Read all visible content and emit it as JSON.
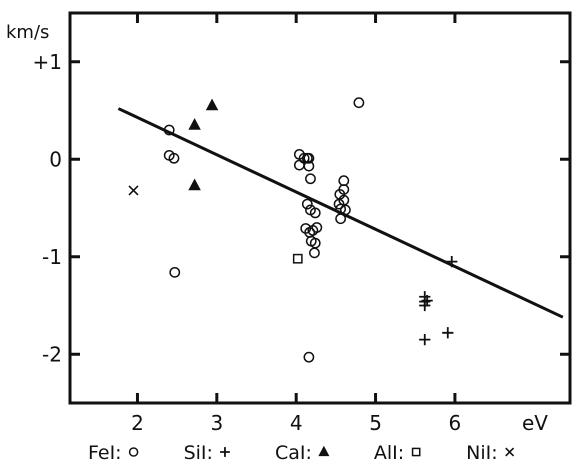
{
  "chart_data": {
    "type": "scatter",
    "title": "",
    "xlabel": "eV",
    "ylabel": "km/s",
    "xlim": [
      1.15,
      7.45
    ],
    "ylim": [
      -2.5,
      1.5
    ],
    "x_ticks": [
      2,
      3,
      4,
      5,
      6
    ],
    "x_tick_labels": [
      "2",
      "3",
      "4",
      "5",
      "6"
    ],
    "y_ticks": [
      1,
      0,
      -1,
      -2
    ],
    "y_tick_labels": [
      "+1",
      "0",
      "-1",
      "-2"
    ],
    "grid": false,
    "legend_position": "bottom",
    "series": [
      {
        "name": "FeI",
        "marker": "circle",
        "points": [
          [
            2.4,
            0.3
          ],
          [
            2.4,
            0.04
          ],
          [
            2.46,
            0.01
          ],
          [
            2.47,
            -1.16
          ],
          [
            4.04,
            0.05
          ],
          [
            4.04,
            -0.06
          ],
          [
            4.1,
            0.01
          ],
          [
            4.14,
            0.01
          ],
          [
            4.16,
            0.01
          ],
          [
            4.16,
            -0.07
          ],
          [
            4.18,
            -0.2
          ],
          [
            4.14,
            -0.46
          ],
          [
            4.18,
            -0.52
          ],
          [
            4.24,
            -0.55
          ],
          [
            4.12,
            -0.71
          ],
          [
            4.17,
            -0.75
          ],
          [
            4.21,
            -0.73
          ],
          [
            4.26,
            -0.7
          ],
          [
            4.19,
            -0.84
          ],
          [
            4.24,
            -0.86
          ],
          [
            4.23,
            -0.96
          ],
          [
            4.16,
            -2.03
          ],
          [
            4.55,
            -0.36
          ],
          [
            4.6,
            -0.22
          ],
          [
            4.6,
            -0.31
          ],
          [
            4.54,
            -0.46
          ],
          [
            4.6,
            -0.42
          ],
          [
            4.56,
            -0.51
          ],
          [
            4.62,
            -0.52
          ],
          [
            4.56,
            -0.61
          ],
          [
            4.79,
            0.58
          ]
        ]
      },
      {
        "name": "SiI",
        "marker": "plus",
        "points": [
          [
            5.62,
            -1.41
          ],
          [
            5.62,
            -1.46
          ],
          [
            5.62,
            -1.5
          ],
          [
            5.65,
            -1.45
          ],
          [
            5.62,
            -1.85
          ],
          [
            5.91,
            -1.78
          ],
          [
            5.96,
            -1.05
          ]
        ]
      },
      {
        "name": "CaI",
        "marker": "triangle",
        "points": [
          [
            2.72,
            0.35
          ],
          [
            2.72,
            -0.27
          ],
          [
            2.94,
            0.55
          ]
        ]
      },
      {
        "name": "AlI",
        "marker": "square",
        "points": [
          [
            4.02,
            -1.02
          ]
        ]
      },
      {
        "name": "NiI",
        "marker": "x",
        "points": [
          [
            1.95,
            -0.32
          ]
        ]
      }
    ],
    "fit_line": {
      "points": [
        [
          1.76,
          0.52
        ],
        [
          7.36,
          -1.62
        ]
      ]
    }
  },
  "legend": {
    "items": [
      {
        "name": "FeI",
        "text": "FeI:",
        "marker": "circle"
      },
      {
        "name": "SiI",
        "text": "SiI:",
        "marker": "plus"
      },
      {
        "name": "CaI",
        "text": "CaI:",
        "marker": "triangle"
      },
      {
        "name": "AlI",
        "text": "AlI:",
        "marker": "square"
      },
      {
        "name": "NiI",
        "text": "NiI:",
        "marker": "x"
      }
    ]
  }
}
